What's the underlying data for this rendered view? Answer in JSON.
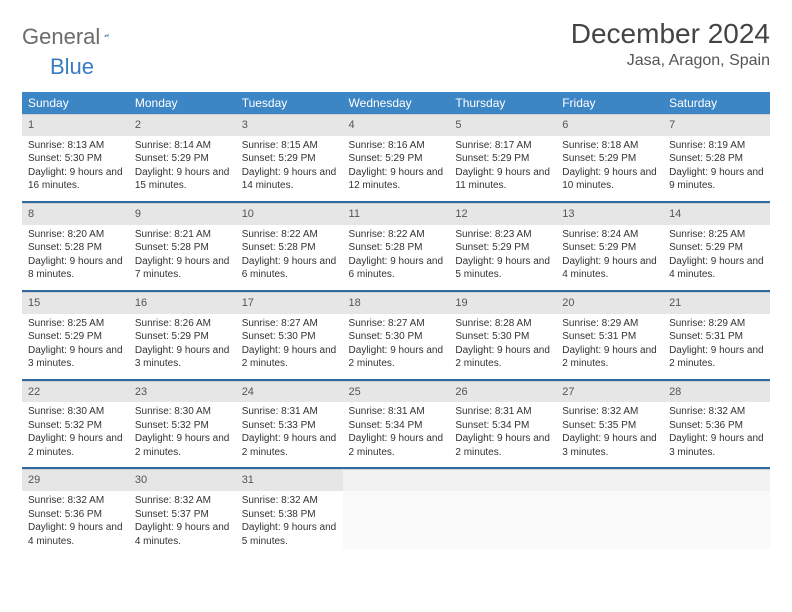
{
  "logo": {
    "text1": "General",
    "text2": "Blue"
  },
  "title": "December 2024",
  "location": "Jasa, Aragon, Spain",
  "colors": {
    "header_bg": "#3d86c6",
    "header_text": "#ffffff",
    "daynum_bg": "#e6e6e6",
    "row_border": "#316aa0",
    "page_bg": "#ffffff",
    "body_text": "#333333"
  },
  "weekdays": [
    "Sunday",
    "Monday",
    "Tuesday",
    "Wednesday",
    "Thursday",
    "Friday",
    "Saturday"
  ],
  "weeks": [
    [
      {
        "n": "1",
        "sr": "Sunrise: 8:13 AM",
        "ss": "Sunset: 5:30 PM",
        "dl": "Daylight: 9 hours and 16 minutes."
      },
      {
        "n": "2",
        "sr": "Sunrise: 8:14 AM",
        "ss": "Sunset: 5:29 PM",
        "dl": "Daylight: 9 hours and 15 minutes."
      },
      {
        "n": "3",
        "sr": "Sunrise: 8:15 AM",
        "ss": "Sunset: 5:29 PM",
        "dl": "Daylight: 9 hours and 14 minutes."
      },
      {
        "n": "4",
        "sr": "Sunrise: 8:16 AM",
        "ss": "Sunset: 5:29 PM",
        "dl": "Daylight: 9 hours and 12 minutes."
      },
      {
        "n": "5",
        "sr": "Sunrise: 8:17 AM",
        "ss": "Sunset: 5:29 PM",
        "dl": "Daylight: 9 hours and 11 minutes."
      },
      {
        "n": "6",
        "sr": "Sunrise: 8:18 AM",
        "ss": "Sunset: 5:29 PM",
        "dl": "Daylight: 9 hours and 10 minutes."
      },
      {
        "n": "7",
        "sr": "Sunrise: 8:19 AM",
        "ss": "Sunset: 5:28 PM",
        "dl": "Daylight: 9 hours and 9 minutes."
      }
    ],
    [
      {
        "n": "8",
        "sr": "Sunrise: 8:20 AM",
        "ss": "Sunset: 5:28 PM",
        "dl": "Daylight: 9 hours and 8 minutes."
      },
      {
        "n": "9",
        "sr": "Sunrise: 8:21 AM",
        "ss": "Sunset: 5:28 PM",
        "dl": "Daylight: 9 hours and 7 minutes."
      },
      {
        "n": "10",
        "sr": "Sunrise: 8:22 AM",
        "ss": "Sunset: 5:28 PM",
        "dl": "Daylight: 9 hours and 6 minutes."
      },
      {
        "n": "11",
        "sr": "Sunrise: 8:22 AM",
        "ss": "Sunset: 5:28 PM",
        "dl": "Daylight: 9 hours and 6 minutes."
      },
      {
        "n": "12",
        "sr": "Sunrise: 8:23 AM",
        "ss": "Sunset: 5:29 PM",
        "dl": "Daylight: 9 hours and 5 minutes."
      },
      {
        "n": "13",
        "sr": "Sunrise: 8:24 AM",
        "ss": "Sunset: 5:29 PM",
        "dl": "Daylight: 9 hours and 4 minutes."
      },
      {
        "n": "14",
        "sr": "Sunrise: 8:25 AM",
        "ss": "Sunset: 5:29 PM",
        "dl": "Daylight: 9 hours and 4 minutes."
      }
    ],
    [
      {
        "n": "15",
        "sr": "Sunrise: 8:25 AM",
        "ss": "Sunset: 5:29 PM",
        "dl": "Daylight: 9 hours and 3 minutes."
      },
      {
        "n": "16",
        "sr": "Sunrise: 8:26 AM",
        "ss": "Sunset: 5:29 PM",
        "dl": "Daylight: 9 hours and 3 minutes."
      },
      {
        "n": "17",
        "sr": "Sunrise: 8:27 AM",
        "ss": "Sunset: 5:30 PM",
        "dl": "Daylight: 9 hours and 2 minutes."
      },
      {
        "n": "18",
        "sr": "Sunrise: 8:27 AM",
        "ss": "Sunset: 5:30 PM",
        "dl": "Daylight: 9 hours and 2 minutes."
      },
      {
        "n": "19",
        "sr": "Sunrise: 8:28 AM",
        "ss": "Sunset: 5:30 PM",
        "dl": "Daylight: 9 hours and 2 minutes."
      },
      {
        "n": "20",
        "sr": "Sunrise: 8:29 AM",
        "ss": "Sunset: 5:31 PM",
        "dl": "Daylight: 9 hours and 2 minutes."
      },
      {
        "n": "21",
        "sr": "Sunrise: 8:29 AM",
        "ss": "Sunset: 5:31 PM",
        "dl": "Daylight: 9 hours and 2 minutes."
      }
    ],
    [
      {
        "n": "22",
        "sr": "Sunrise: 8:30 AM",
        "ss": "Sunset: 5:32 PM",
        "dl": "Daylight: 9 hours and 2 minutes."
      },
      {
        "n": "23",
        "sr": "Sunrise: 8:30 AM",
        "ss": "Sunset: 5:32 PM",
        "dl": "Daylight: 9 hours and 2 minutes."
      },
      {
        "n": "24",
        "sr": "Sunrise: 8:31 AM",
        "ss": "Sunset: 5:33 PM",
        "dl": "Daylight: 9 hours and 2 minutes."
      },
      {
        "n": "25",
        "sr": "Sunrise: 8:31 AM",
        "ss": "Sunset: 5:34 PM",
        "dl": "Daylight: 9 hours and 2 minutes."
      },
      {
        "n": "26",
        "sr": "Sunrise: 8:31 AM",
        "ss": "Sunset: 5:34 PM",
        "dl": "Daylight: 9 hours and 2 minutes."
      },
      {
        "n": "27",
        "sr": "Sunrise: 8:32 AM",
        "ss": "Sunset: 5:35 PM",
        "dl": "Daylight: 9 hours and 3 minutes."
      },
      {
        "n": "28",
        "sr": "Sunrise: 8:32 AM",
        "ss": "Sunset: 5:36 PM",
        "dl": "Daylight: 9 hours and 3 minutes."
      }
    ],
    [
      {
        "n": "29",
        "sr": "Sunrise: 8:32 AM",
        "ss": "Sunset: 5:36 PM",
        "dl": "Daylight: 9 hours and 4 minutes."
      },
      {
        "n": "30",
        "sr": "Sunrise: 8:32 AM",
        "ss": "Sunset: 5:37 PM",
        "dl": "Daylight: 9 hours and 4 minutes."
      },
      {
        "n": "31",
        "sr": "Sunrise: 8:32 AM",
        "ss": "Sunset: 5:38 PM",
        "dl": "Daylight: 9 hours and 5 minutes."
      },
      {
        "n": "",
        "sr": "",
        "ss": "",
        "dl": "",
        "empty": true
      },
      {
        "n": "",
        "sr": "",
        "ss": "",
        "dl": "",
        "empty": true
      },
      {
        "n": "",
        "sr": "",
        "ss": "",
        "dl": "",
        "empty": true
      },
      {
        "n": "",
        "sr": "",
        "ss": "",
        "dl": "",
        "empty": true
      }
    ]
  ]
}
